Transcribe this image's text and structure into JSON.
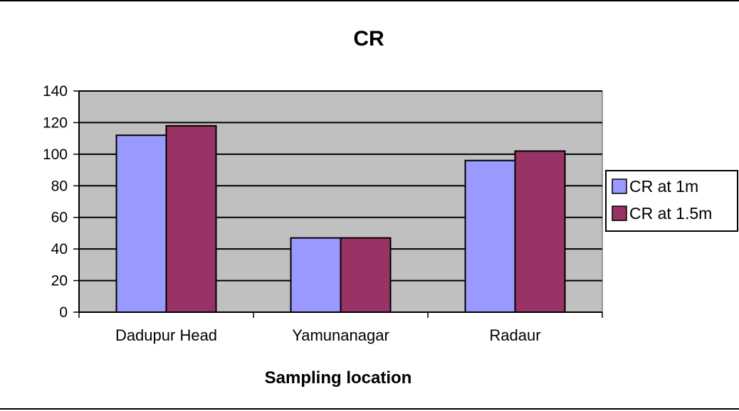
{
  "chart_data": {
    "type": "bar",
    "title": "CR",
    "xlabel": "Sampling location",
    "ylabel": "",
    "categories": [
      "Dadupur Head",
      "Yamunanagar",
      "Radaur"
    ],
    "series": [
      {
        "name": "CR at 1m",
        "values": [
          112,
          47,
          96
        ],
        "color": "#9999ff"
      },
      {
        "name": "CR at 1.5m",
        "values": [
          118,
          47,
          102
        ],
        "color": "#993366"
      }
    ],
    "ylim": [
      0,
      140
    ],
    "yticks": [
      "0",
      "20",
      "40",
      "60",
      "80",
      "100",
      "120",
      "140"
    ],
    "grid": true,
    "legend": "right",
    "plot_background": "#c0c0c0"
  }
}
